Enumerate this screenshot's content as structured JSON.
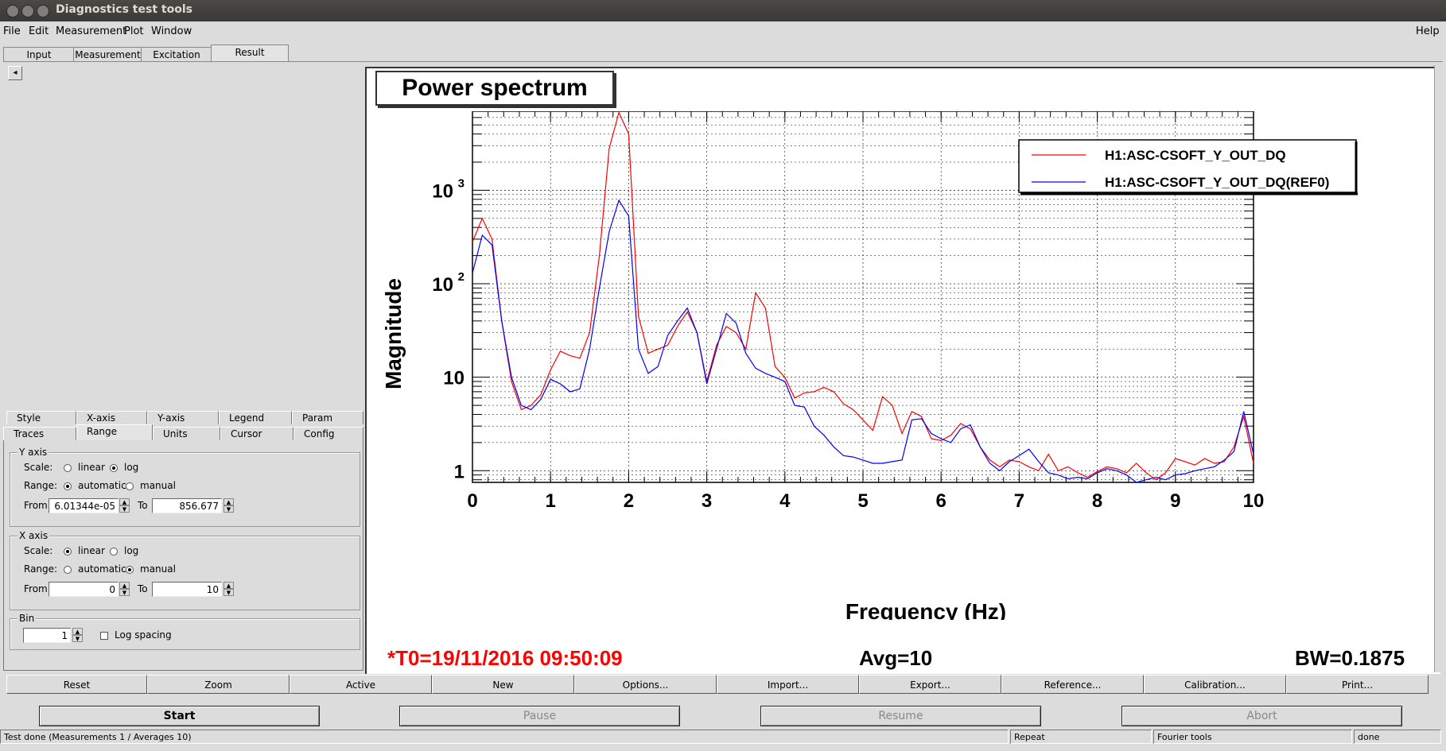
{
  "window": {
    "title": "Diagnostics test tools"
  },
  "menu": {
    "file": "File",
    "edit": "Edit",
    "measurement": "Measurement",
    "plot": "Plot",
    "window": "Window",
    "help": "Help"
  },
  "tabs": [
    "Input",
    "Measurement",
    "Excitation",
    "Result"
  ],
  "left_arrow": "◂",
  "settings_tabs_row1": [
    "Style",
    "X-axis",
    "Y-axis",
    "Legend",
    "Param"
  ],
  "settings_tabs_row2": [
    "Traces",
    "Range",
    "Units",
    "Cursor",
    "Config"
  ],
  "y_axis": {
    "legend": "Y axis",
    "scale_label": "Scale:",
    "linear": "linear",
    "log": "log",
    "scale_selected": "log",
    "range_label": "Range:",
    "automatic": "automatic",
    "manual": "manual",
    "range_selected": "automatic",
    "from_label": "From",
    "from_value": "6.01344e-05",
    "to_label": "To",
    "to_value": "856.677"
  },
  "x_axis": {
    "legend": "X axis",
    "scale_label": "Scale:",
    "linear": "linear",
    "log": "log",
    "scale_selected": "linear",
    "range_label": "Range:",
    "automatic": "automatic",
    "manual": "manual",
    "range_selected": "manual",
    "from_label": "From",
    "from_value": "0",
    "to_label": "To",
    "to_value": "10"
  },
  "bin": {
    "legend": "Bin",
    "value": "1",
    "log_spacing": "Log spacing",
    "log_spacing_checked": false
  },
  "plot": {
    "title": "Power spectrum",
    "t0": "*T0=19/11/2016 09:50:09",
    "avg": "Avg=10",
    "bw": "BW=0.1875"
  },
  "chart_data": {
    "type": "line",
    "title": "Power spectrum",
    "xlabel": "Frequency (Hz)",
    "ylabel": "Magnitude",
    "xlim": [
      0,
      10
    ],
    "ylim": [
      0.75,
      7000
    ],
    "yscale": "log",
    "grid": true,
    "legend_position": "top-right",
    "x_ticks": [
      "0",
      "1",
      "2",
      "3",
      "4",
      "5",
      "6",
      "7",
      "8",
      "9",
      "10"
    ],
    "y_ticks": [
      {
        "value": 1,
        "label": "1",
        "sup": ""
      },
      {
        "value": 10,
        "label": "10",
        "sup": ""
      },
      {
        "value": 100,
        "label": "10",
        "sup": "2"
      },
      {
        "value": 1000,
        "label": "10",
        "sup": "3"
      }
    ],
    "series": [
      {
        "name": "H1:ASC-CSOFT_Y_OUT_DQ",
        "color": "#ff0000",
        "x": [
          0,
          0.125,
          0.25,
          0.375,
          0.5,
          0.625,
          0.75,
          0.875,
          1.0,
          1.125,
          1.25,
          1.375,
          1.5,
          1.625,
          1.75,
          1.875,
          2.0,
          2.125,
          2.25,
          2.375,
          2.5,
          2.625,
          2.75,
          2.875,
          3.0,
          3.125,
          3.25,
          3.375,
          3.5,
          3.625,
          3.75,
          3.875,
          4.0,
          4.125,
          4.25,
          4.375,
          4.5,
          4.625,
          4.75,
          4.875,
          5.0,
          5.125,
          5.25,
          5.375,
          5.5,
          5.625,
          5.75,
          5.875,
          6.0,
          6.125,
          6.25,
          6.375,
          6.5,
          6.625,
          6.75,
          6.875,
          7.0,
          7.125,
          7.25,
          7.375,
          7.5,
          7.625,
          7.75,
          7.875,
          8.0,
          8.125,
          8.25,
          8.375,
          8.5,
          8.625,
          8.75,
          8.875,
          9.0,
          9.125,
          9.25,
          9.375,
          9.5,
          9.625,
          9.75,
          9.875,
          10.0
        ],
        "values": [
          280,
          500,
          300,
          40,
          9,
          4.5,
          5,
          6.5,
          12,
          19,
          17,
          16,
          30,
          200,
          2800,
          6800,
          4000,
          45,
          18,
          20,
          22,
          35,
          50,
          30,
          9,
          22,
          35,
          30,
          20,
          80,
          55,
          13,
          10,
          6,
          6.8,
          7,
          7.8,
          7,
          5.2,
          4.5,
          3.5,
          2.7,
          6.2,
          5,
          2.5,
          4.3,
          3.8,
          2.2,
          2.1,
          2.4,
          3.2,
          2.8,
          1.8,
          1.3,
          1.1,
          1.3,
          1.25,
          1.1,
          1.0,
          1.5,
          1.0,
          1.1,
          0.95,
          0.85,
          0.98,
          1.1,
          1.05,
          0.95,
          1.2,
          0.95,
          0.8,
          0.95,
          1.35,
          1.25,
          1.15,
          1.35,
          1.2,
          1.25,
          1.8,
          3.8,
          1.2
        ]
      },
      {
        "name": "H1:ASC-CSOFT_Y_OUT_DQ(REF0)",
        "color": "#0000ff",
        "x": [
          0,
          0.125,
          0.25,
          0.375,
          0.5,
          0.625,
          0.75,
          0.875,
          1.0,
          1.125,
          1.25,
          1.375,
          1.5,
          1.625,
          1.75,
          1.875,
          2.0,
          2.125,
          2.25,
          2.375,
          2.5,
          2.625,
          2.75,
          2.875,
          3.0,
          3.125,
          3.25,
          3.375,
          3.5,
          3.625,
          3.75,
          3.875,
          4.0,
          4.125,
          4.25,
          4.375,
          4.5,
          4.625,
          4.75,
          4.875,
          5.0,
          5.125,
          5.25,
          5.375,
          5.5,
          5.625,
          5.75,
          5.875,
          6.0,
          6.125,
          6.25,
          6.375,
          6.5,
          6.625,
          6.75,
          6.875,
          7.0,
          7.125,
          7.25,
          7.375,
          7.5,
          7.625,
          7.75,
          7.875,
          8.0,
          8.125,
          8.25,
          8.375,
          8.5,
          8.625,
          8.75,
          8.875,
          9.0,
          9.125,
          9.25,
          9.375,
          9.5,
          9.625,
          9.75,
          9.875,
          10.0
        ],
        "values": [
          130,
          330,
          260,
          40,
          10,
          5,
          4.5,
          5.8,
          9.5,
          8.5,
          7,
          7.5,
          20,
          90,
          360,
          780,
          530,
          20,
          11,
          13,
          28,
          40,
          55,
          30,
          8.5,
          20,
          48,
          38,
          18,
          12.5,
          11,
          10,
          9,
          5,
          4.8,
          3,
          2.4,
          1.8,
          1.45,
          1.4,
          1.3,
          1.2,
          1.2,
          1.25,
          1.3,
          3.5,
          3.6,
          2.5,
          2.2,
          2.0,
          2.8,
          3.1,
          1.8,
          1.2,
          1.0,
          1.25,
          1.45,
          1.7,
          1.25,
          0.95,
          0.9,
          0.82,
          0.85,
          0.82,
          0.95,
          1.05,
          1.0,
          0.9,
          0.75,
          0.8,
          0.85,
          0.8,
          0.9,
          0.93,
          1.0,
          1.05,
          1.1,
          1.3,
          1.6,
          4.3,
          1.5
        ]
      }
    ]
  },
  "buttons": [
    "Reset",
    "Zoom",
    "Active",
    "New",
    "Options...",
    "Import...",
    "Export...",
    "Reference...",
    "Calibration...",
    "Print..."
  ],
  "controls": {
    "start": "Start",
    "pause": "Pause",
    "resume": "Resume",
    "abort": "Abort"
  },
  "status": {
    "message": "Test done (Measurements 1 / Averages 10)",
    "mode": "Repeat",
    "tool": "Fourier tools",
    "state": "done"
  }
}
